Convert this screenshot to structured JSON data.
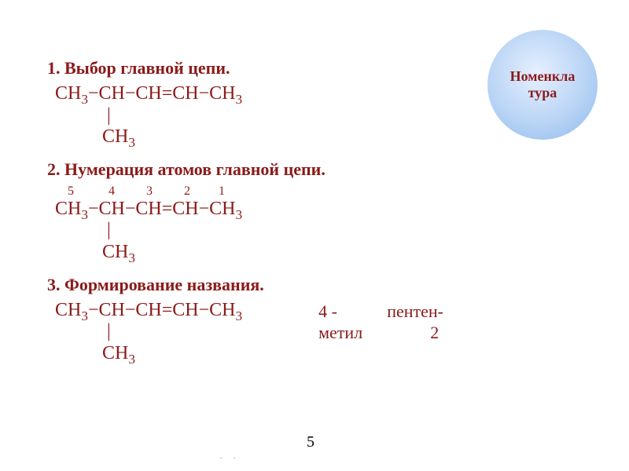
{
  "circle": {
    "line1": "Номенкла",
    "line2": "тура",
    "bg_inner": "#e6f0ff",
    "bg_outer": "#8cb8ec",
    "text_color": "#8b1a1a"
  },
  "steps": {
    "s1": {
      "num": "1.",
      "title": "Выбор главной цепи."
    },
    "s2": {
      "num": "2.",
      "title": "Нумерация атомов главной цепи."
    },
    "s3": {
      "num": "3.",
      "title": "Формирование названия."
    }
  },
  "formula": {
    "main_html": "CH<span class='sub'>3</span>−CH−CH=CH−CH<span class='sub'>3</span>",
    "branch_bar": "           |",
    "branch_html": "          CH<span class='sub'>3</span>"
  },
  "numbering": {
    "row": "    5           4          3          2         1"
  },
  "name": {
    "c1a": "4 -",
    "c1b": "метил",
    "c2a": "пентен-",
    "c2b": "          2"
  },
  "page_number": "5",
  "colors": {
    "text": "#8b1a1a",
    "background": "#ffffff"
  },
  "fonts": {
    "body": "Times New Roman",
    "heading_size_pt": 17,
    "formula_size_pt": 18
  }
}
